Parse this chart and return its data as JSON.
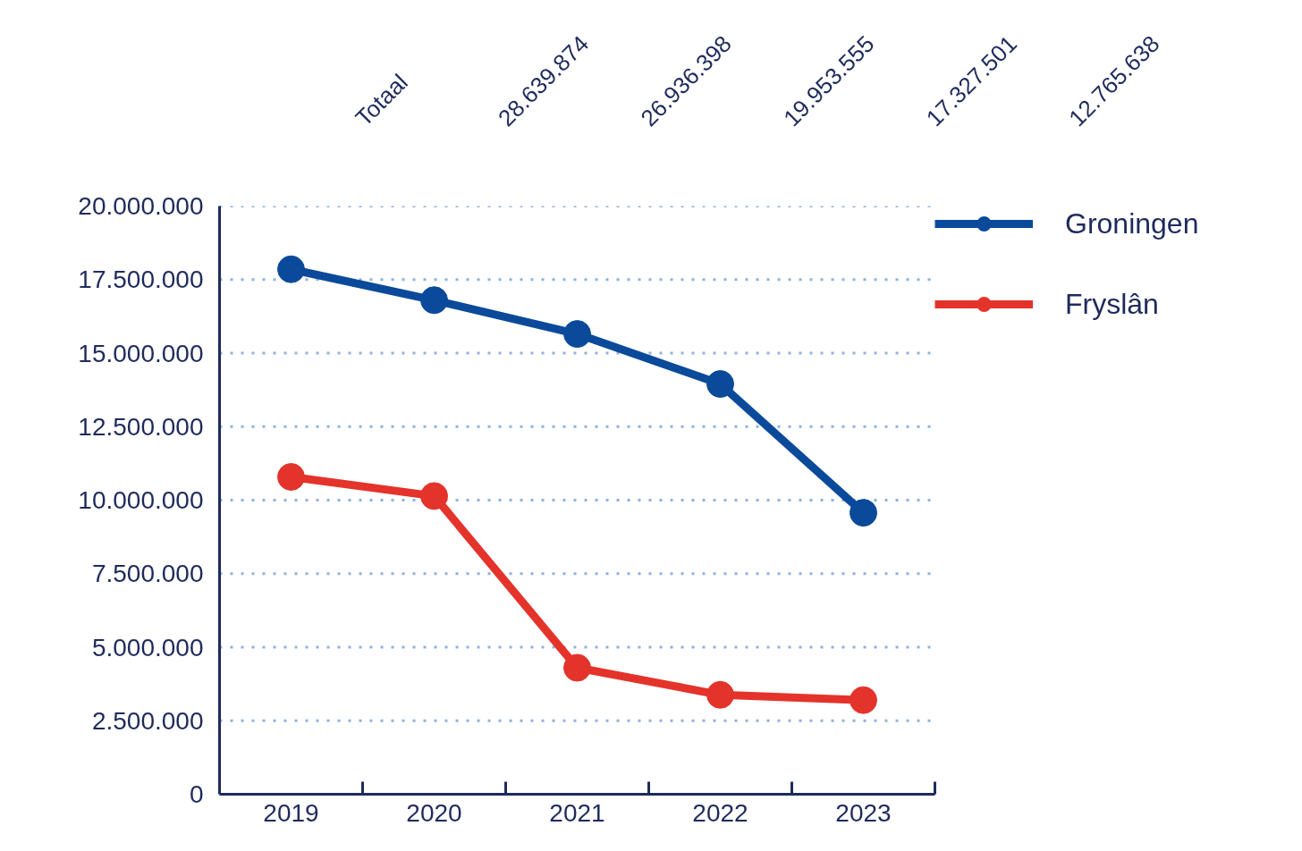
{
  "chart_data": {
    "type": "line",
    "categories": [
      "2019",
      "2020",
      "2021",
      "2022",
      "2023"
    ],
    "series": [
      {
        "name": "Groningen",
        "color": "#0b4a9a",
        "values": [
          17850000,
          16800000,
          15650000,
          13950000,
          9570000
        ]
      },
      {
        "name": "Fryslân",
        "color": "#e4332b",
        "values": [
          10790000,
          10140000,
          4300000,
          3380000,
          3200000
        ]
      }
    ],
    "totals": [
      "28.639.874",
      "26.936.398",
      "19.953.555",
      "17.327.501",
      "12.765.638"
    ],
    "annotations": [
      "Totaal"
    ],
    "ylim": [
      0,
      20000000
    ],
    "yticks": [
      0,
      {
        "value": 2500000,
        "label": "2.500.000"
      },
      {
        "value": 5000000,
        "label": "5.000.000"
      },
      {
        "value": 7500000,
        "label": "7.500.000"
      },
      {
        "value": 10000000,
        "label": "10.000.000"
      },
      {
        "value": 12500000,
        "label": "12.500.000"
      },
      {
        "value": 15000000,
        "label": "15.000.000"
      },
      {
        "value": 17500000,
        "label": "17.500.000"
      },
      {
        "value": 20000000,
        "label": "20.000.000"
      }
    ],
    "grid": "y",
    "legend": "top right",
    "marker": "circle",
    "line_style": "solid"
  }
}
